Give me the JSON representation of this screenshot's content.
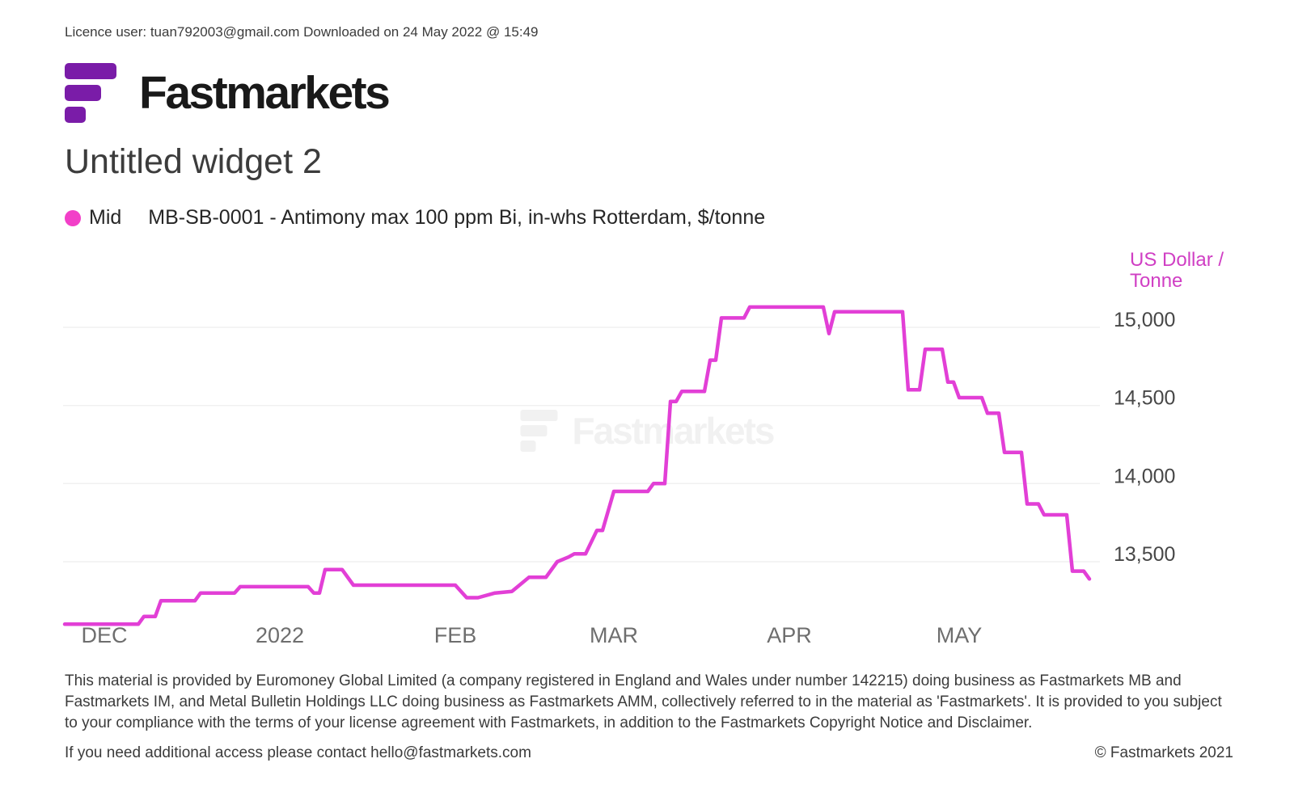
{
  "header": {
    "licence_line": "Licence user: tuan792003@gmail.com Downloaded on 24 May 2022 @ 15:49"
  },
  "brand": {
    "wordmark": "Fastmarkets"
  },
  "title": "Untitled widget 2",
  "legend": {
    "series_type": "Mid",
    "series_name": "MB-SB-0001 - Antimony max 100 ppm Bi, in-whs Rotterdam, $/tonne"
  },
  "colors": {
    "brand_purple": "#7a1ca8",
    "line_pink": "#e23fd6",
    "dot_pink": "#f23fc8",
    "unit_label_pink": "#d03fc4",
    "gridline": "#f0f0f0",
    "y_tick_text": "#474747",
    "x_tick_text": "#6e6e6e"
  },
  "chart_data": {
    "type": "line",
    "title": "MB-SB-0001 - Antimony max 100 ppm Bi, in-whs Rotterdam, $/tonne",
    "ylabel": "US Dollar / Tonne",
    "unit_label_lines": [
      "US Dollar /",
      "Tonne"
    ],
    "watermark": "Fastmarkets",
    "grid": true,
    "legend_position": "top-left",
    "x_start_date": "2021-11-24",
    "x_end_date": "2022-05-24",
    "x_domain_days": [
      0,
      181
    ],
    "x_ticks": [
      {
        "label": "DEC",
        "day": 7
      },
      {
        "label": "2022",
        "day": 38
      },
      {
        "label": "FEB",
        "day": 69
      },
      {
        "label": "MAR",
        "day": 97
      },
      {
        "label": "APR",
        "day": 128
      },
      {
        "label": "MAY",
        "day": 158
      }
    ],
    "y_ticks": [
      {
        "label": "15,000",
        "value": 15000
      },
      {
        "label": "14,500",
        "value": 14500
      },
      {
        "label": "14,000",
        "value": 14000
      },
      {
        "label": "13,500",
        "value": 13500
      }
    ],
    "ylim": [
      13050,
      15380
    ],
    "series": [
      {
        "name": "Mid — MB-SB-0001 Antimony max 100 ppm Bi, in-whs Rotterdam, $/tonne",
        "color": "#e23fd6",
        "points_day_value": [
          [
            0,
            13100
          ],
          [
            13,
            13100
          ],
          [
            14,
            13150
          ],
          [
            16,
            13150
          ],
          [
            17,
            13250
          ],
          [
            23,
            13250
          ],
          [
            24,
            13300
          ],
          [
            30,
            13300
          ],
          [
            31,
            13340
          ],
          [
            43,
            13340
          ],
          [
            44,
            13300
          ],
          [
            45,
            13300
          ],
          [
            46,
            13450
          ],
          [
            49,
            13450
          ],
          [
            51,
            13350
          ],
          [
            69,
            13350
          ],
          [
            71,
            13270
          ],
          [
            73,
            13270
          ],
          [
            76,
            13300
          ],
          [
            79,
            13310
          ],
          [
            82,
            13400
          ],
          [
            85,
            13400
          ],
          [
            87,
            13500
          ],
          [
            89,
            13530
          ],
          [
            90,
            13550
          ],
          [
            92,
            13550
          ],
          [
            94,
            13700
          ],
          [
            95,
            13700
          ],
          [
            97,
            13950
          ],
          [
            103,
            13950
          ],
          [
            104,
            14000
          ],
          [
            106,
            14000
          ],
          [
            107,
            14525
          ],
          [
            108,
            14525
          ],
          [
            109,
            14590
          ],
          [
            113,
            14590
          ],
          [
            114,
            14790
          ],
          [
            115,
            14790
          ],
          [
            116,
            15060
          ],
          [
            120,
            15060
          ],
          [
            121,
            15130
          ],
          [
            134,
            15130
          ],
          [
            135,
            14960
          ],
          [
            136,
            15100
          ],
          [
            148,
            15100
          ],
          [
            149,
            14600
          ],
          [
            151,
            14600
          ],
          [
            152,
            14860
          ],
          [
            155,
            14860
          ],
          [
            156,
            14650
          ],
          [
            157,
            14650
          ],
          [
            158,
            14550
          ],
          [
            162,
            14550
          ],
          [
            163,
            14450
          ],
          [
            165,
            14450
          ],
          [
            166,
            14200
          ],
          [
            169,
            14200
          ],
          [
            170,
            13870
          ],
          [
            172,
            13870
          ],
          [
            173,
            13800
          ],
          [
            177,
            13800
          ],
          [
            178,
            13440
          ],
          [
            180,
            13440
          ],
          [
            181,
            13390
          ]
        ]
      }
    ]
  },
  "footer": {
    "disclaimer": "This material is provided by Euromoney Global Limited (a company registered in England and Wales under number 142215) doing business as Fastmarkets MB and Fastmarkets IM, and Metal Bulletin Holdings LLC doing business as Fastmarkets AMM, collectively referred to in the material as 'Fastmarkets'. It is provided to you subject to your compliance with the terms of your license agreement with Fastmarkets, in addition to the Fastmarkets Copyright Notice and Disclaimer.",
    "contact": "If you need additional access please contact hello@fastmarkets.com",
    "copyright": "© Fastmarkets 2021"
  }
}
